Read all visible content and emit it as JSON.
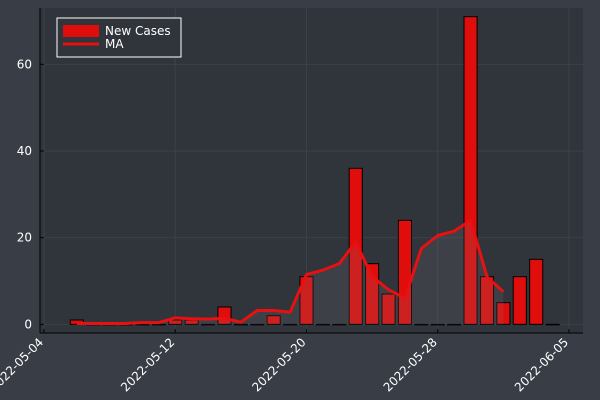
{
  "chart_data": {
    "type": "bar_line",
    "x": [
      "2022-05-06",
      "2022-05-07",
      "2022-05-08",
      "2022-05-09",
      "2022-05-10",
      "2022-05-11",
      "2022-05-12",
      "2022-05-13",
      "2022-05-14",
      "2022-05-15",
      "2022-05-16",
      "2022-05-17",
      "2022-05-18",
      "2022-05-19",
      "2022-05-20",
      "2022-05-21",
      "2022-05-22",
      "2022-05-23",
      "2022-05-24",
      "2022-05-25",
      "2022-05-26",
      "2022-05-27",
      "2022-05-28",
      "2022-05-29",
      "2022-05-30",
      "2022-05-31",
      "2022-06-01",
      "2022-06-02",
      "2022-06-03",
      "2022-06-04"
    ],
    "series": [
      {
        "name": "New Cases",
        "kind": "bar",
        "color": "#e00d0d",
        "values": [
          1,
          0,
          0,
          0,
          0,
          0,
          1,
          1,
          0,
          4,
          0,
          0,
          2,
          0,
          11,
          0,
          0,
          36,
          14,
          7,
          24,
          0,
          0,
          0,
          71,
          11,
          5,
          11,
          15,
          0
        ]
      },
      {
        "name": "MA",
        "kind": "line",
        "color": "#e81010",
        "values": [
          0.2,
          0.2,
          0.2,
          0.2,
          0.4,
          0.4,
          1.5,
          1.3,
          1.2,
          1.4,
          0.5,
          3.2,
          3.2,
          2.8,
          11.5,
          12.5,
          14,
          19,
          11,
          8,
          6,
          17.5,
          20.5,
          21.5,
          24,
          11,
          7.5,
          null,
          null,
          null
        ]
      }
    ],
    "xlim": [
      "2022-05-04",
      "2022-06-05"
    ],
    "xticks": [
      "2022-05-04",
      "2022-05-12",
      "2022-05-20",
      "2022-05-28",
      "2022-06-05"
    ],
    "ylim": [
      -2,
      73
    ],
    "yticks": [
      0,
      20,
      40,
      60
    ],
    "grid": true,
    "legend": "upper left"
  }
}
